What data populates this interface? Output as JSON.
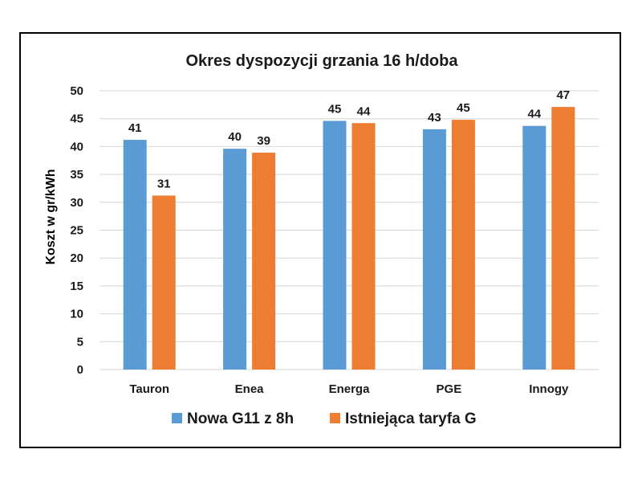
{
  "chart_data": {
    "type": "bar",
    "title": "Okres dyspozycji grzania 16 h/doba",
    "ylabel": "Koszt w gr/kWh",
    "xlabel": "",
    "ylim": [
      0,
      50
    ],
    "yticks": [
      0,
      5,
      10,
      15,
      20,
      25,
      30,
      35,
      40,
      45,
      50
    ],
    "grid": true,
    "legend_position": "bottom",
    "categories": [
      "Tauron",
      "Enea",
      "Energa",
      "PGE",
      "Innogy"
    ],
    "series": [
      {
        "name": "Nowa G11 z 8h",
        "color": "#5b9bd5",
        "values": [
          41.2,
          39.6,
          44.6,
          43.1,
          43.7
        ],
        "labels": [
          "41",
          "40",
          "45",
          "43",
          "44"
        ]
      },
      {
        "name": "Istniejąca taryfa G",
        "color": "#ed7d31",
        "values": [
          31.2,
          38.9,
          44.2,
          44.8,
          47.1
        ],
        "labels": [
          "31",
          "39",
          "44",
          "45",
          "47"
        ]
      }
    ]
  }
}
